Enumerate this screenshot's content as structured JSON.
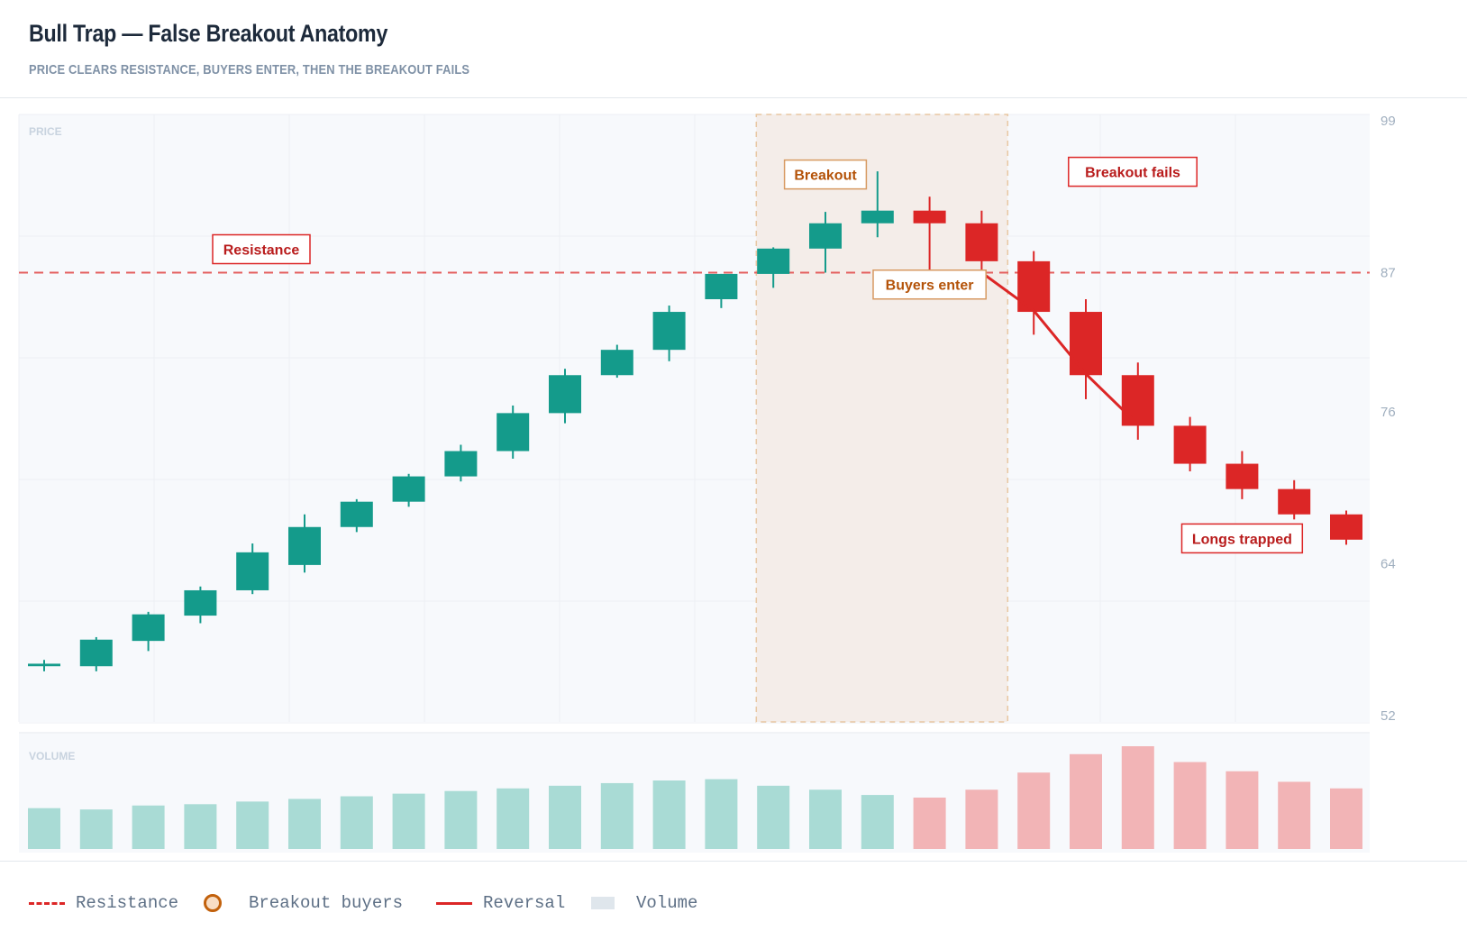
{
  "header": {
    "title": "Bull Trap — False Breakout Anatomy",
    "subtitle": "PRICE CLEARS RESISTANCE, BUYERS ENTER, THEN THE BREAKOUT FAILS"
  },
  "chart_data": {
    "type": "candlestick",
    "panel_labels": {
      "price": "PRICE",
      "volume": "VOLUME"
    },
    "y_axis": {
      "min": 52,
      "max": 99,
      "ticks": [
        99,
        87,
        76,
        64,
        52
      ]
    },
    "resistance": 87.0,
    "resistance_label": "Resistance",
    "breakout_zone": {
      "from_candle": 14,
      "to_candle": 19
    },
    "annotations": [
      {
        "text": "Breakout",
        "candle": 15,
        "style": "orange"
      },
      {
        "text": "Buyers enter",
        "candle": 17,
        "style": "orange"
      },
      {
        "text": "Breakout fails",
        "candle": 20,
        "style": "red"
      },
      {
        "text": "Longs trapped",
        "candle": 23,
        "style": "red"
      }
    ],
    "reversal_path": [
      [
        18,
        87.0
      ],
      [
        19,
        84.0
      ],
      [
        20,
        79.0
      ],
      [
        21,
        75.0
      ]
    ],
    "candles": [
      {
        "o": 55.9,
        "h": 56.4,
        "l": 55.5,
        "c": 56.1,
        "v": 31
      },
      {
        "o": 55.9,
        "h": 58.2,
        "l": 55.5,
        "c": 58.0,
        "v": 30
      },
      {
        "o": 57.9,
        "h": 60.2,
        "l": 57.1,
        "c": 60.0,
        "v": 33
      },
      {
        "o": 59.9,
        "h": 62.2,
        "l": 59.3,
        "c": 61.9,
        "v": 34
      },
      {
        "o": 61.9,
        "h": 65.6,
        "l": 61.6,
        "c": 64.9,
        "v": 36
      },
      {
        "o": 63.9,
        "h": 67.9,
        "l": 63.3,
        "c": 66.9,
        "v": 38
      },
      {
        "o": 66.9,
        "h": 69.1,
        "l": 66.5,
        "c": 68.9,
        "v": 40
      },
      {
        "o": 68.9,
        "h": 71.1,
        "l": 68.5,
        "c": 70.9,
        "v": 42
      },
      {
        "o": 70.9,
        "h": 73.4,
        "l": 70.5,
        "c": 72.9,
        "v": 44
      },
      {
        "o": 72.9,
        "h": 76.5,
        "l": 72.3,
        "c": 75.9,
        "v": 46
      },
      {
        "o": 75.9,
        "h": 79.4,
        "l": 75.1,
        "c": 78.9,
        "v": 48
      },
      {
        "o": 78.9,
        "h": 81.3,
        "l": 78.7,
        "c": 80.9,
        "v": 50
      },
      {
        "o": 80.9,
        "h": 84.4,
        "l": 80.0,
        "c": 83.9,
        "v": 52
      },
      {
        "o": 84.9,
        "h": 86.9,
        "l": 84.2,
        "c": 86.9,
        "v": 53
      },
      {
        "o": 86.9,
        "h": 89.0,
        "l": 85.8,
        "c": 88.9,
        "v": 48
      },
      {
        "o": 88.9,
        "h": 91.8,
        "l": 87.0,
        "c": 90.9,
        "v": 45
      },
      {
        "o": 90.9,
        "h": 95.0,
        "l": 89.8,
        "c": 91.9,
        "v": 41
      },
      {
        "o": 91.9,
        "h": 93.0,
        "l": 87.0,
        "c": 90.9,
        "v": 39
      },
      {
        "o": 90.9,
        "h": 91.9,
        "l": 87.0,
        "c": 87.9,
        "v": 45
      },
      {
        "o": 87.9,
        "h": 88.7,
        "l": 82.1,
        "c": 83.9,
        "v": 58
      },
      {
        "o": 83.9,
        "h": 84.9,
        "l": 77.0,
        "c": 78.9,
        "v": 72
      },
      {
        "o": 78.9,
        "h": 79.9,
        "l": 73.8,
        "c": 74.9,
        "v": 78
      },
      {
        "o": 74.9,
        "h": 75.6,
        "l": 71.3,
        "c": 71.9,
        "v": 66
      },
      {
        "o": 71.9,
        "h": 72.9,
        "l": 69.1,
        "c": 69.9,
        "v": 59
      },
      {
        "o": 69.9,
        "h": 70.6,
        "l": 67.5,
        "c": 67.9,
        "v": 51
      },
      {
        "o": 67.9,
        "h": 68.2,
        "l": 65.5,
        "c": 65.9,
        "v": 46
      }
    ],
    "colors": {
      "up": "#149b8b",
      "down": "#dc2626",
      "up_volume": "#a9dbd5",
      "down_volume": "#f2b4b6",
      "zone_fill": "#f4ede9",
      "zone_border": "#e8c7a2"
    }
  },
  "legend": {
    "items": [
      {
        "swatch": "dash",
        "label": "Resistance"
      },
      {
        "swatch": "circle",
        "label": "Breakout buyers"
      },
      {
        "swatch": "line",
        "label": "Reversal"
      },
      {
        "swatch": "box",
        "label": "Volume"
      }
    ]
  }
}
